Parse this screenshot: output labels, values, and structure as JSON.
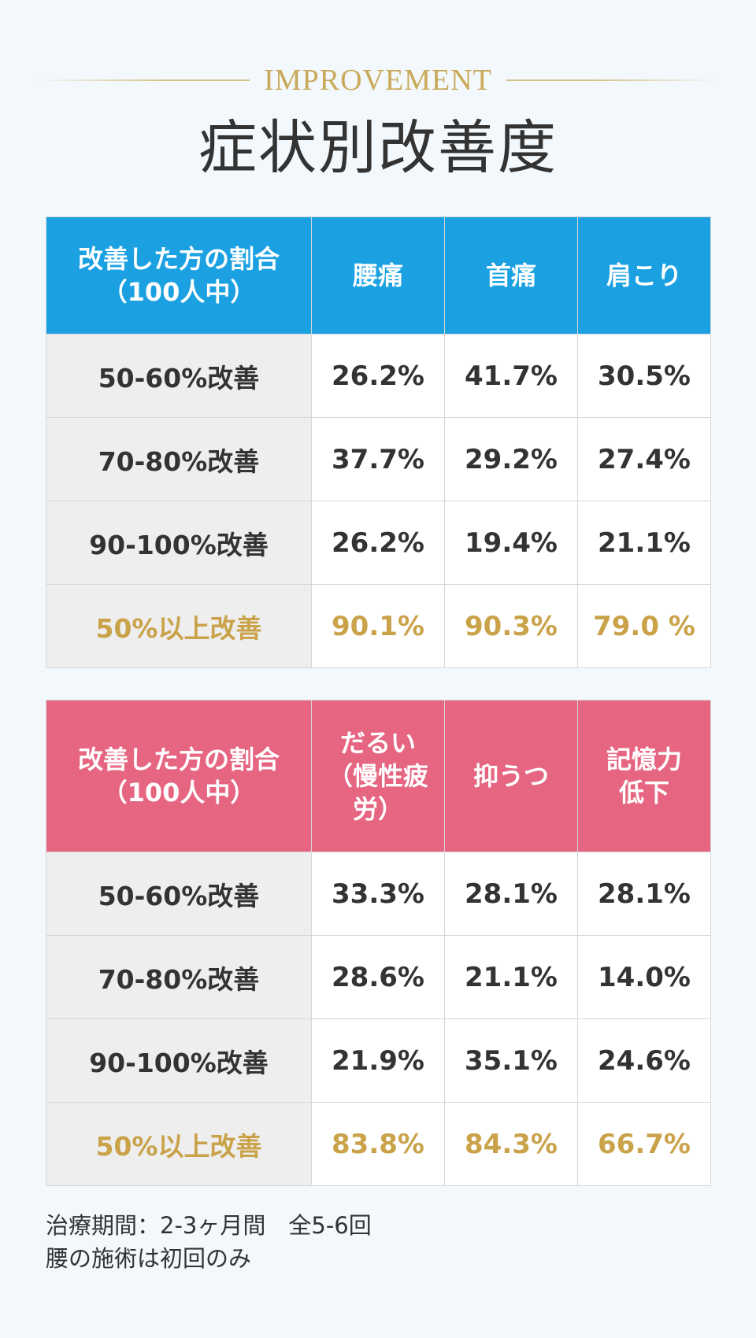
{
  "header": {
    "eyebrow": "IMPROVEMENT",
    "title": "症状別改善度"
  },
  "table1": {
    "corner_line1": "改善した方の割合",
    "corner_line2": "（100人中）",
    "columns": [
      "腰痛",
      "首痛",
      "肩こり"
    ],
    "rows": [
      {
        "label": "50-60%改善",
        "values": [
          "26.2%",
          "41.7%",
          "30.5%"
        ]
      },
      {
        "label": "70-80%改善",
        "values": [
          "37.7%",
          "29.2%",
          "27.4%"
        ]
      },
      {
        "label": "90-100%改善",
        "values": [
          "26.2%",
          "19.4%",
          "21.1%"
        ]
      },
      {
        "label": "50%以上改善",
        "values": [
          "90.1%",
          "90.3%",
          "79.0 %"
        ]
      }
    ],
    "header_color": "#1ba1e2"
  },
  "table2": {
    "corner_line1": "改善した方の割合",
    "corner_line2": "（100人中）",
    "columns": [
      {
        "line1": "だるい",
        "line2": "（慢性疲",
        "line3": "労）"
      },
      {
        "line1": "抑うつ"
      },
      {
        "line1": "記憶力",
        "line2": "低下"
      }
    ],
    "rows": [
      {
        "label": "50-60%改善",
        "values": [
          "33.3%",
          "28.1%",
          "28.1%"
        ]
      },
      {
        "label": "70-80%改善",
        "values": [
          "28.6%",
          "21.1%",
          "14.0%"
        ]
      },
      {
        "label": "90-100%改善",
        "values": [
          "21.9%",
          "35.1%",
          "24.6%"
        ]
      },
      {
        "label": "50%以上改善",
        "values": [
          "83.8%",
          "84.3%",
          "66.7%"
        ]
      }
    ],
    "header_color": "#e66682"
  },
  "highlight_color": "#c9a24a",
  "notes": {
    "line1": "治療期間：2-3ヶ月間　全5-6回",
    "line2": "腰の施術は初回のみ"
  }
}
